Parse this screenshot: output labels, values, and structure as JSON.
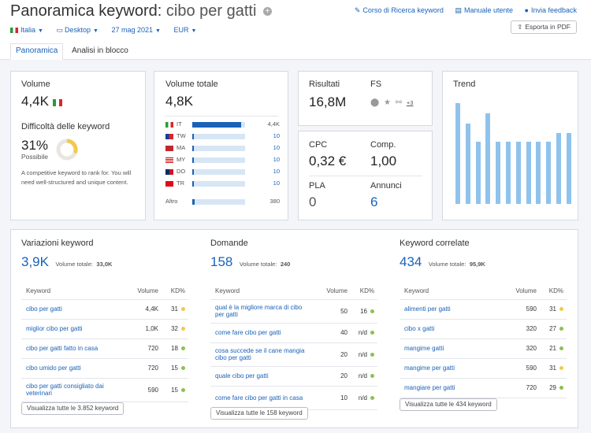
{
  "header": {
    "title_prefix": "Panoramica keyword:",
    "keyword": "cibo per gatti",
    "links": [
      "Corso di Ricerca keyword",
      "Manuale utente",
      "Invia feedback"
    ],
    "filters": {
      "country": "Italia",
      "device": "Desktop",
      "date": "27 mag 2021",
      "currency": "EUR"
    },
    "export_label": "Esporta in PDF",
    "tabs": [
      "Panoramica",
      "Analisi in blocco"
    ]
  },
  "volume": {
    "label": "Volume",
    "value": "4,4K",
    "difficulty_label": "Difficoltà delle keyword",
    "difficulty_value": "31%",
    "difficulty_level": "Possibile",
    "difficulty_percent": 31,
    "difficulty_desc": "A competitive keyword to rank for. You will need well-structured and unique content."
  },
  "total_volume": {
    "label": "Volume totale",
    "value": "4,8K",
    "countries": [
      {
        "code": "IT",
        "value": "4,4K",
        "share": 0.92,
        "flag": "it"
      },
      {
        "code": "TW",
        "value": "10",
        "share": 0.03,
        "flag": "tw"
      },
      {
        "code": "MA",
        "value": "10",
        "share": 0.03,
        "flag": "ma"
      },
      {
        "code": "MY",
        "value": "10",
        "share": 0.03,
        "flag": "my"
      },
      {
        "code": "DO",
        "value": "10",
        "share": 0.03,
        "flag": "do"
      },
      {
        "code": "TR",
        "value": "10",
        "share": 0.03,
        "flag": "tr"
      }
    ],
    "other_label": "Altro",
    "other_value": "380",
    "other_share": 0.05
  },
  "results": {
    "label": "Risultati",
    "value": "16,8M",
    "fs_label": "FS",
    "fs_more": "+3"
  },
  "cpc": {
    "cpc_label": "CPC",
    "cpc_value": "0,32 €",
    "comp_label": "Comp.",
    "comp_value": "1,00",
    "pla_label": "PLA",
    "pla_value": "0",
    "ads_label": "Annunci",
    "ads_value": "6"
  },
  "trend": {
    "label": "Trend",
    "values": [
      1.0,
      0.8,
      0.62,
      0.9,
      0.62,
      0.62,
      0.62,
      0.62,
      0.62,
      0.62,
      0.7,
      0.7
    ]
  },
  "variations": {
    "title": "Variazioni keyword",
    "count": "3,9K",
    "total_label": "Volume totale:",
    "total_value": "33,0K",
    "columns": [
      "Keyword",
      "Volume",
      "KD%"
    ],
    "rows": [
      {
        "kw": "cibo per gatti",
        "vol": "4,4K",
        "kd": "31",
        "color": "#f2c94c"
      },
      {
        "kw": "miglior cibo per gatti",
        "vol": "1,0K",
        "kd": "32",
        "color": "#f2c94c"
      },
      {
        "kw": "cibo per gatti fatto in casa",
        "vol": "720",
        "kd": "18",
        "color": "#8cc152"
      },
      {
        "kw": "cibo umido per gatti",
        "vol": "720",
        "kd": "15",
        "color": "#8cc152"
      },
      {
        "kw": "cibo per gatti consigliato dai veterinari",
        "vol": "590",
        "kd": "15",
        "color": "#8cc152"
      }
    ],
    "button": "Visualizza tutte le 3.852 keyword"
  },
  "questions": {
    "title": "Domande",
    "count": "158",
    "total_label": "Volume totale:",
    "total_value": "240",
    "columns": [
      "Keyword",
      "Volume",
      "KD%"
    ],
    "rows": [
      {
        "kw": "qual è la migliore marca di cibo per gatti",
        "vol": "50",
        "kd": "16",
        "color": "#8cc152"
      },
      {
        "kw": "come fare cibo per gatti",
        "vol": "40",
        "kd": "n/d",
        "color": "#8cc152"
      },
      {
        "kw": "cosa succede se il cane mangia cibo per gatti",
        "vol": "20",
        "kd": "n/d",
        "color": "#8cc152"
      },
      {
        "kw": "quale cibo per gatti",
        "vol": "20",
        "kd": "n/d",
        "color": "#8cc152"
      },
      {
        "kw": "come fare cibo per gatti in casa",
        "vol": "10",
        "kd": "n/d",
        "color": "#8cc152"
      }
    ],
    "button": "Visualizza tutte le 158 keyword"
  },
  "related": {
    "title": "Keyword correlate",
    "count": "434",
    "total_label": "Volume totale:",
    "total_value": "95,9K",
    "columns": [
      "Keyword",
      "Volume",
      "KD%"
    ],
    "rows": [
      {
        "kw": "alimenti per gatti",
        "vol": "590",
        "kd": "31",
        "color": "#f2c94c"
      },
      {
        "kw": "cibo x gatti",
        "vol": "320",
        "kd": "27",
        "color": "#8cc152"
      },
      {
        "kw": "mangime gatti",
        "vol": "320",
        "kd": "21",
        "color": "#8cc152"
      },
      {
        "kw": "mangime per gatti",
        "vol": "590",
        "kd": "31",
        "color": "#f2c94c"
      },
      {
        "kw": "mangiare per gatti",
        "vol": "720",
        "kd": "29",
        "color": "#8cc152"
      }
    ],
    "button": "Visualizza tutte le 434 keyword"
  },
  "colors": {
    "accent": "#1a62b8",
    "bar": "#8fc3ec",
    "easy": "#8cc152",
    "medium": "#f2c94c"
  }
}
